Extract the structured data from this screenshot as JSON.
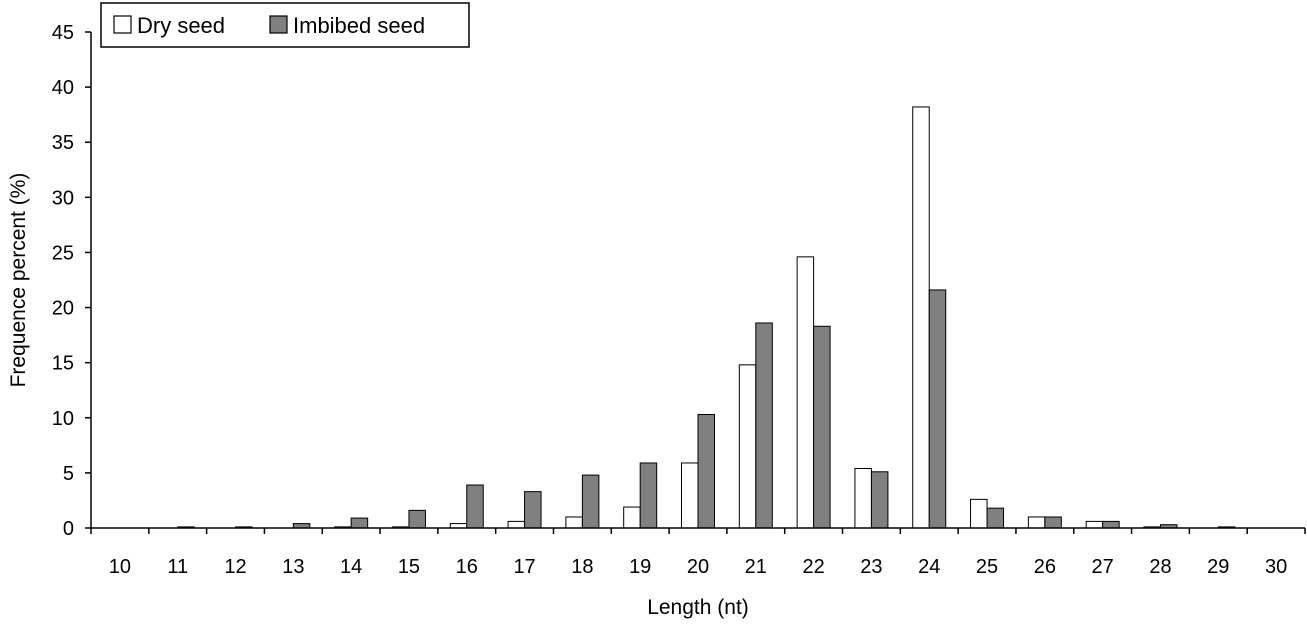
{
  "chart_data": {
    "type": "bar",
    "categories": [
      "10",
      "11",
      "12",
      "13",
      "14",
      "15",
      "16",
      "17",
      "18",
      "19",
      "20",
      "21",
      "22",
      "23",
      "24",
      "25",
      "26",
      "27",
      "28",
      "29",
      "30"
    ],
    "series": [
      {
        "name": "Dry seed",
        "color": "#ffffff",
        "values": [
          0,
          0,
          0,
          0,
          0.1,
          0.1,
          0.4,
          0.6,
          1.0,
          1.9,
          5.9,
          14.8,
          24.6,
          5.4,
          38.2,
          2.6,
          1.0,
          0.6,
          0.1,
          0,
          0
        ]
      },
      {
        "name": "Imbibed seed",
        "color": "#808080",
        "values": [
          0,
          0.1,
          0.1,
          0.4,
          0.9,
          1.6,
          3.9,
          3.3,
          4.8,
          5.9,
          10.3,
          18.6,
          18.3,
          5.1,
          21.6,
          1.8,
          1.0,
          0.6,
          0.3,
          0.1,
          0
        ]
      }
    ],
    "xlabel": "Length (nt)",
    "ylabel": "Frequence percent (%)",
    "ylim": [
      0,
      45
    ],
    "yticks": [
      "0",
      "5",
      "10",
      "15",
      "20",
      "25",
      "30",
      "35",
      "40",
      "45"
    ],
    "grid": false,
    "legend_position": "top-left"
  }
}
